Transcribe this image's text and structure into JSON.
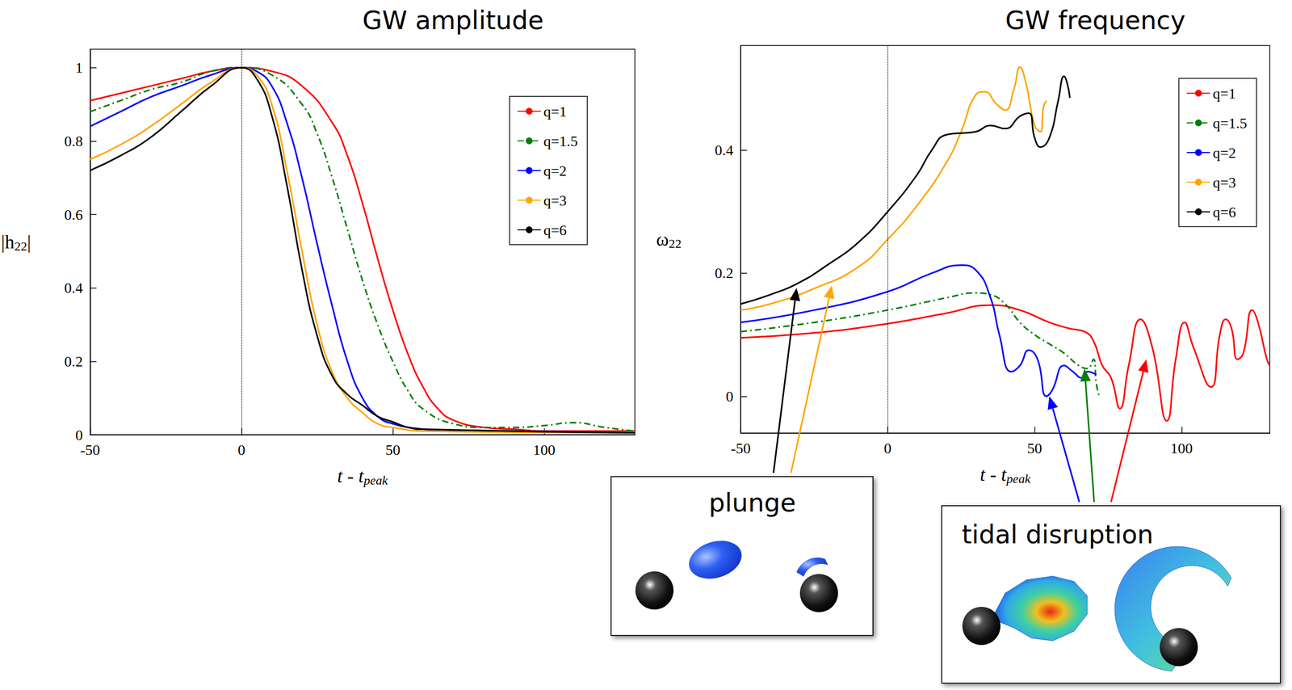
{
  "chart_data": [
    {
      "type": "line",
      "title": "GW amplitude",
      "xlabel": {
        "text": "t - t",
        "subscript": "peak"
      },
      "ylabel": {
        "text": "|h",
        "subscript": "22",
        "suffix": "|"
      },
      "xlim": [
        -50,
        130
      ],
      "xticks": [
        -50,
        0,
        50,
        100
      ],
      "ylim": [
        0,
        1.05
      ],
      "yticks": [
        0,
        0.2,
        0.4,
        0.6,
        0.8,
        1
      ],
      "reference_x": 0,
      "legend": "upper right",
      "series": [
        {
          "name": "q=1",
          "color": "#ff0000",
          "line_style": "solid",
          "x": [
            -50,
            -40,
            -30,
            -20,
            -10,
            0,
            10,
            20,
            30,
            35,
            40,
            45,
            50,
            55,
            60,
            65,
            70,
            80,
            90,
            100,
            130
          ],
          "values": [
            0.91,
            0.93,
            0.95,
            0.97,
            0.99,
            1.0,
            0.99,
            0.95,
            0.85,
            0.76,
            0.63,
            0.48,
            0.34,
            0.22,
            0.13,
            0.07,
            0.04,
            0.02,
            0.015,
            0.01,
            0.01
          ]
        },
        {
          "name": "q=1.5",
          "color": "#008000",
          "line_style": "dashdot",
          "x": [
            -50,
            -40,
            -30,
            -20,
            -10,
            0,
            10,
            20,
            25,
            30,
            35,
            40,
            45,
            50,
            55,
            60,
            70,
            80,
            90,
            100,
            110,
            120,
            130
          ],
          "values": [
            0.88,
            0.91,
            0.94,
            0.96,
            0.99,
            1.0,
            0.98,
            0.9,
            0.82,
            0.7,
            0.56,
            0.42,
            0.3,
            0.2,
            0.12,
            0.07,
            0.03,
            0.02,
            0.02,
            0.025,
            0.033,
            0.02,
            0.01
          ]
        },
        {
          "name": "q=2",
          "color": "#0000ff",
          "line_style": "solid",
          "x": [
            -50,
            -40,
            -30,
            -20,
            -10,
            0,
            5,
            10,
            15,
            20,
            25,
            30,
            35,
            40,
            45,
            50,
            60,
            70,
            80,
            130
          ],
          "values": [
            0.84,
            0.88,
            0.92,
            0.95,
            0.98,
            1.0,
            0.99,
            0.95,
            0.85,
            0.7,
            0.52,
            0.35,
            0.2,
            0.1,
            0.05,
            0.03,
            0.015,
            0.01,
            0.01,
            0.005
          ]
        },
        {
          "name": "q=3",
          "color": "#ffa500",
          "line_style": "solid",
          "x": [
            -50,
            -40,
            -30,
            -20,
            -10,
            0,
            5,
            10,
            15,
            20,
            25,
            30,
            35,
            40,
            45,
            50,
            60,
            130
          ],
          "values": [
            0.75,
            0.79,
            0.84,
            0.9,
            0.96,
            1.0,
            0.98,
            0.9,
            0.72,
            0.5,
            0.3,
            0.17,
            0.1,
            0.06,
            0.03,
            0.02,
            0.01,
            0.005
          ]
        },
        {
          "name": "q=6",
          "color": "#000000",
          "line_style": "solid",
          "x": [
            -50,
            -40,
            -30,
            -20,
            -10,
            0,
            5,
            10,
            15,
            20,
            25,
            30,
            35,
            40,
            45,
            50,
            55,
            60,
            130
          ],
          "values": [
            0.72,
            0.76,
            0.81,
            0.88,
            0.95,
            1.0,
            0.97,
            0.87,
            0.68,
            0.45,
            0.27,
            0.16,
            0.11,
            0.08,
            0.05,
            0.035,
            0.02,
            0.015,
            0.005
          ]
        }
      ]
    },
    {
      "type": "line",
      "title": "GW frequency",
      "xlabel": {
        "text": "t - t",
        "subscript": "peak"
      },
      "ylabel": {
        "text": "ω",
        "subscript": "22",
        "suffix": ""
      },
      "xlim": [
        -50,
        130
      ],
      "xticks": [
        -50,
        0,
        50,
        100
      ],
      "ylim": [
        -0.06,
        0.57
      ],
      "yticks": [
        0,
        0.2,
        0.4
      ],
      "reference_x": 0,
      "legend": "upper right",
      "series": [
        {
          "name": "q=1",
          "color": "#ff0000",
          "line_style": "solid",
          "x": [
            -50,
            -25,
            0,
            20,
            35,
            45,
            55,
            62,
            67,
            70,
            73,
            76,
            79,
            82,
            86,
            90,
            95,
            98,
            101,
            104,
            110,
            113,
            115,
            117,
            119,
            121,
            124,
            126,
            129,
            130
          ],
          "values": [
            0.095,
            0.103,
            0.118,
            0.135,
            0.148,
            0.14,
            0.12,
            0.11,
            0.105,
            0.09,
            0.05,
            0.03,
            -0.02,
            0.05,
            0.125,
            0.08,
            -0.04,
            0.06,
            0.12,
            0.08,
            0.015,
            0.1,
            0.125,
            0.11,
            0.06,
            0.07,
            0.14,
            0.12,
            0.06,
            0.05
          ]
        },
        {
          "name": "q=1.5",
          "color": "#008000",
          "line_style": "dashdot",
          "x": [
            -50,
            -25,
            0,
            20,
            30,
            35,
            40,
            45,
            50,
            55,
            60,
            65,
            68,
            70,
            71,
            72
          ],
          "values": [
            0.105,
            0.12,
            0.14,
            0.16,
            0.168,
            0.165,
            0.15,
            0.12,
            0.1,
            0.085,
            0.07,
            0.05,
            0.045,
            0.06,
            0.02,
            0.0
          ]
        },
        {
          "name": "q=2",
          "color": "#0000ff",
          "line_style": "solid",
          "x": [
            -50,
            -25,
            0,
            15,
            25,
            30,
            35,
            38,
            42,
            45,
            48,
            51,
            54,
            56,
            60,
            63,
            66,
            68,
            71
          ],
          "values": [
            0.12,
            0.14,
            0.17,
            0.2,
            0.213,
            0.205,
            0.16,
            0.1,
            0.04,
            0.05,
            0.075,
            0.06,
            0.0,
            0.01,
            0.05,
            0.04,
            0.03,
            0.04,
            0.035
          ]
        },
        {
          "name": "q=3",
          "color": "#ffa500",
          "line_style": "solid",
          "x": [
            -50,
            -40,
            -25,
            -10,
            0,
            10,
            20,
            25,
            30,
            33,
            37,
            40,
            43,
            45,
            47,
            50,
            52,
            53,
            54
          ],
          "values": [
            0.14,
            0.15,
            0.175,
            0.21,
            0.255,
            0.31,
            0.38,
            0.43,
            0.49,
            0.495,
            0.475,
            0.465,
            0.5,
            0.535,
            0.51,
            0.44,
            0.43,
            0.47,
            0.48
          ]
        },
        {
          "name": "q=6",
          "color": "#000000",
          "line_style": "solid",
          "x": [
            -50,
            -40,
            -30,
            -20,
            -10,
            0,
            10,
            15,
            20,
            30,
            35,
            40,
            45,
            48,
            50,
            52,
            55,
            58,
            60,
            61,
            62
          ],
          "values": [
            0.15,
            0.165,
            0.185,
            0.215,
            0.25,
            0.3,
            0.36,
            0.4,
            0.425,
            0.43,
            0.44,
            0.435,
            0.455,
            0.46,
            0.42,
            0.405,
            0.42,
            0.48,
            0.52,
            0.51,
            0.485
          ]
        }
      ],
      "annotations": [
        {
          "text": "plunge",
          "targets": [
            {
              "x": -31,
              "y": 0.176,
              "color": "#000000"
            },
            {
              "x": -19,
              "y": 0.18,
              "color": "#ffa500"
            }
          ]
        },
        {
          "text": "tidal disruption",
          "targets": [
            {
              "x": 55,
              "y": 0.0,
              "color": "#0000ff"
            },
            {
              "x": 67,
              "y": 0.045,
              "color": "#008000"
            },
            {
              "x": 88,
              "y": 0.06,
              "color": "#ff0000"
            }
          ]
        }
      ]
    }
  ]
}
